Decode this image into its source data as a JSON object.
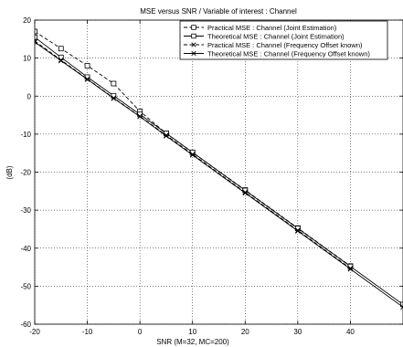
{
  "chart_data": {
    "type": "line",
    "title": "MSE versus SNR / Variable of interest :  Channel",
    "xlabel": "SNR (M=32, MC=200)",
    "ylabel": "(dB)",
    "xlim": [
      -20,
      50
    ],
    "ylim": [
      -60,
      20
    ],
    "xticks": [
      -20,
      -10,
      0,
      10,
      20,
      30,
      40
    ],
    "yticks": [
      -60,
      -50,
      -40,
      -30,
      -20,
      -10,
      0,
      10,
      20
    ],
    "grid": true,
    "legend_position": "top-right",
    "series": [
      {
        "name": "Practical MSE : Channel (Joint Estimation)",
        "line": "dashed",
        "marker": "square",
        "x": [
          -20,
          -15,
          -10,
          -5,
          0,
          5,
          10,
          20,
          30,
          40
        ],
        "y": [
          17,
          12.5,
          8,
          3.3,
          -4,
          -9.8,
          -14.8,
          -24.7,
          -34.7,
          -44.7
        ]
      },
      {
        "name": "Theoretical MSE : Channel (Joint Estimation)",
        "line": "solid",
        "marker": "square",
        "x": [
          -20,
          -15,
          -10,
          -5,
          0,
          5,
          10,
          20,
          30,
          40,
          50
        ],
        "y": [
          15.5,
          10.2,
          5,
          0.1,
          -4.8,
          -9.8,
          -14.8,
          -24.8,
          -34.8,
          -44.8,
          -54.8
        ]
      },
      {
        "name": "Practical MSE : Channel (Frequency Offset  known)",
        "line": "dashed",
        "marker": "x",
        "x": [
          -20,
          -15,
          -10,
          -5,
          0,
          5,
          10,
          20,
          30,
          40
        ],
        "y": [
          14.5,
          9.5,
          4.5,
          -0.5,
          -5.3,
          -10.3,
          -15.3,
          -25.3,
          -35.3,
          -45.3
        ]
      },
      {
        "name": "Theoretical MSE : Channel (Frequency Offset  known)",
        "line": "solid",
        "marker": "x",
        "x": [
          -20,
          -15,
          -10,
          -5,
          0,
          5,
          10,
          20,
          30,
          40,
          50
        ],
        "y": [
          14.2,
          9.3,
          4.4,
          -0.6,
          -5.4,
          -10.5,
          -15.5,
          -25.5,
          -35.5,
          -45.5,
          -55.5
        ]
      }
    ]
  }
}
